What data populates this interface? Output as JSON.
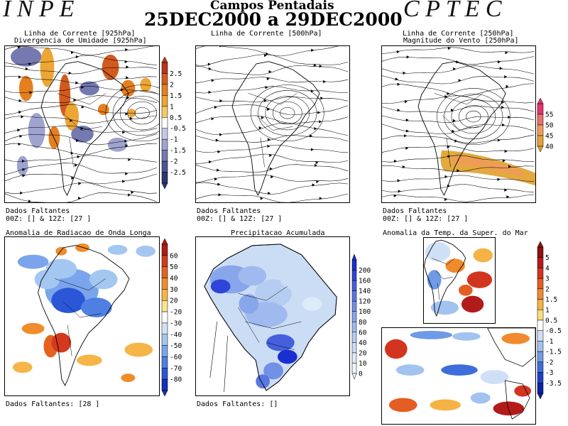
{
  "header": {
    "left_letters": "I N P E",
    "right_letters": "C P T E C",
    "title": "Campos Pentadais",
    "period": "25DEC2000 a 29DEC2000"
  },
  "panels": {
    "p1": {
      "title1": "Linha de Corrente [925hPa]",
      "title2": "Divergencia de Umidade [925hPa]",
      "missing": "Dados Faltantes",
      "missing2": "00Z: [] & 12Z: [27 ]",
      "colorbar": [
        "2.5",
        "2",
        "1.5",
        "1",
        "0.5",
        "-0.5",
        "-1",
        "-1.5",
        "-2",
        "-2.5"
      ],
      "colors": [
        "#b8361c",
        "#d35a1e",
        "#e57f1f",
        "#eda634",
        "#f5c869",
        "#ffffff",
        "#c7c7e6",
        "#9fa3cf",
        "#7479b0",
        "#4e5490",
        "#2d356e"
      ]
    },
    "p2": {
      "title1": "Linha de Corrente [500hPa]",
      "missing": "Dados Faltantes",
      "missing2": "00Z: [] & 12Z: [27 ]"
    },
    "p3": {
      "title1": "Linha de Corrente [250hPa]",
      "title2": "Magnitude do Vento [250hPa]",
      "missing": "Dados Faltantes",
      "missing2": "00Z: [] & 12Z: [27 ]",
      "colorbar": [
        "55",
        "50",
        "45",
        "40"
      ],
      "colors": [
        "#e8336e",
        "#ec6f6f",
        "#f29a5c",
        "#e2a436"
      ]
    },
    "p4": {
      "title1": "Anomalia de Radiacao de Onda Longa",
      "missing": "Dados Faltantes: [28 ]",
      "colorbar": [
        "60",
        "50",
        "40",
        "30",
        "20",
        "-20",
        "-30",
        "-40",
        "-50",
        "-60",
        "-70",
        "-80"
      ],
      "colors": [
        "#b01c15",
        "#d2391d",
        "#e5611f",
        "#f08c2b",
        "#f6b547",
        "#fbe48f",
        "#ffffff",
        "#cfe2f6",
        "#a4c7f1",
        "#7aa5ec",
        "#4f7fe3",
        "#2b56d6",
        "#1330b8"
      ]
    },
    "p5": {
      "title1": "Precipitacao Acumulada",
      "missing": "Dados Faltantes: []",
      "colorbar": [
        "200",
        "160",
        "140",
        "120",
        "100",
        "80",
        "60",
        "40",
        "20",
        "10",
        "0"
      ],
      "colors": [
        "#1a2fd0",
        "#2e45d8",
        "#4460dd",
        "#5a78e2",
        "#7190e6",
        "#88a6ea",
        "#9fbaee",
        "#b6cdf2",
        "#cbdcf5",
        "#deebf8",
        "#eef5fb"
      ]
    },
    "p6": {
      "title1": "Anomalia da Temp. da Super. do Mar",
      "colorbar": [
        "5",
        "4",
        "3",
        "2",
        "1.5",
        "1",
        "0.5",
        "-0.5",
        "-1",
        "-1.5",
        "-2",
        "-3",
        "-3.5"
      ],
      "colors": [
        "#8e1010",
        "#b31b1b",
        "#d2351f",
        "#e45d22",
        "#f08a2c",
        "#f5b245",
        "#fbde7d",
        "#ffffff",
        "#cfe0f6",
        "#a2c3ef",
        "#6f9ae6",
        "#3f6ddb",
        "#1c3fc8",
        "#0c22a2"
      ]
    }
  }
}
